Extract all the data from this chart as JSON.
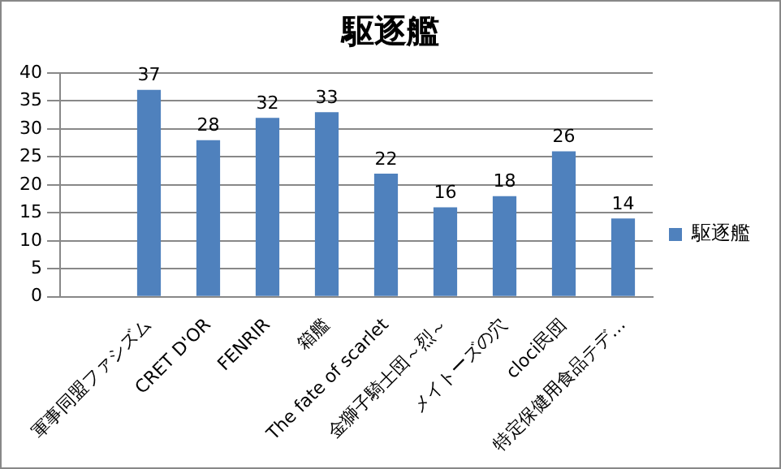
{
  "chart_data": {
    "type": "bar",
    "title": "駆逐艦",
    "categories": [
      null,
      "軍事同盟ファシズム",
      "CRET D'OR",
      "FENRIR",
      "箱艦",
      "The fate of scarlet",
      "金獅子騎士団～烈～",
      "メイトーズの穴",
      "cloci民団",
      "特定保健用食品テデ…"
    ],
    "series": [
      {
        "name": "駆逐艦",
        "color": "#4f81bd",
        "values": [
          null,
          37,
          28,
          32,
          33,
          22,
          16,
          18,
          26,
          14
        ]
      }
    ],
    "ylim": [
      0,
      40
    ],
    "yticks": [
      0,
      5,
      10,
      15,
      20,
      25,
      30,
      35,
      40
    ],
    "grid": "y",
    "legend": "right",
    "data_labels": true
  }
}
